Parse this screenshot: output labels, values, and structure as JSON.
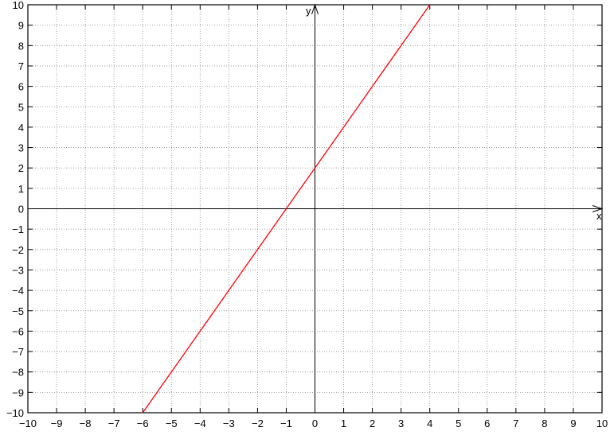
{
  "chart_data": {
    "type": "line",
    "title": "",
    "xlabel": "x",
    "ylabel": "y",
    "xlim": [
      -10,
      10
    ],
    "ylim": [
      -10,
      10
    ],
    "grid": true,
    "xticks": [
      -10,
      -9,
      -8,
      -7,
      -6,
      -5,
      -4,
      -3,
      -2,
      -1,
      0,
      1,
      2,
      3,
      4,
      5,
      6,
      7,
      8,
      9,
      10
    ],
    "yticks": [
      -10,
      -9,
      -8,
      -7,
      -6,
      -5,
      -4,
      -3,
      -2,
      -1,
      0,
      1,
      2,
      3,
      4,
      5,
      6,
      7,
      8,
      9,
      10
    ],
    "series": [
      {
        "color": "#ff0000",
        "x": [
          -6,
          4
        ],
        "y": [
          -10,
          10
        ]
      }
    ],
    "axis_color": "#000000"
  }
}
